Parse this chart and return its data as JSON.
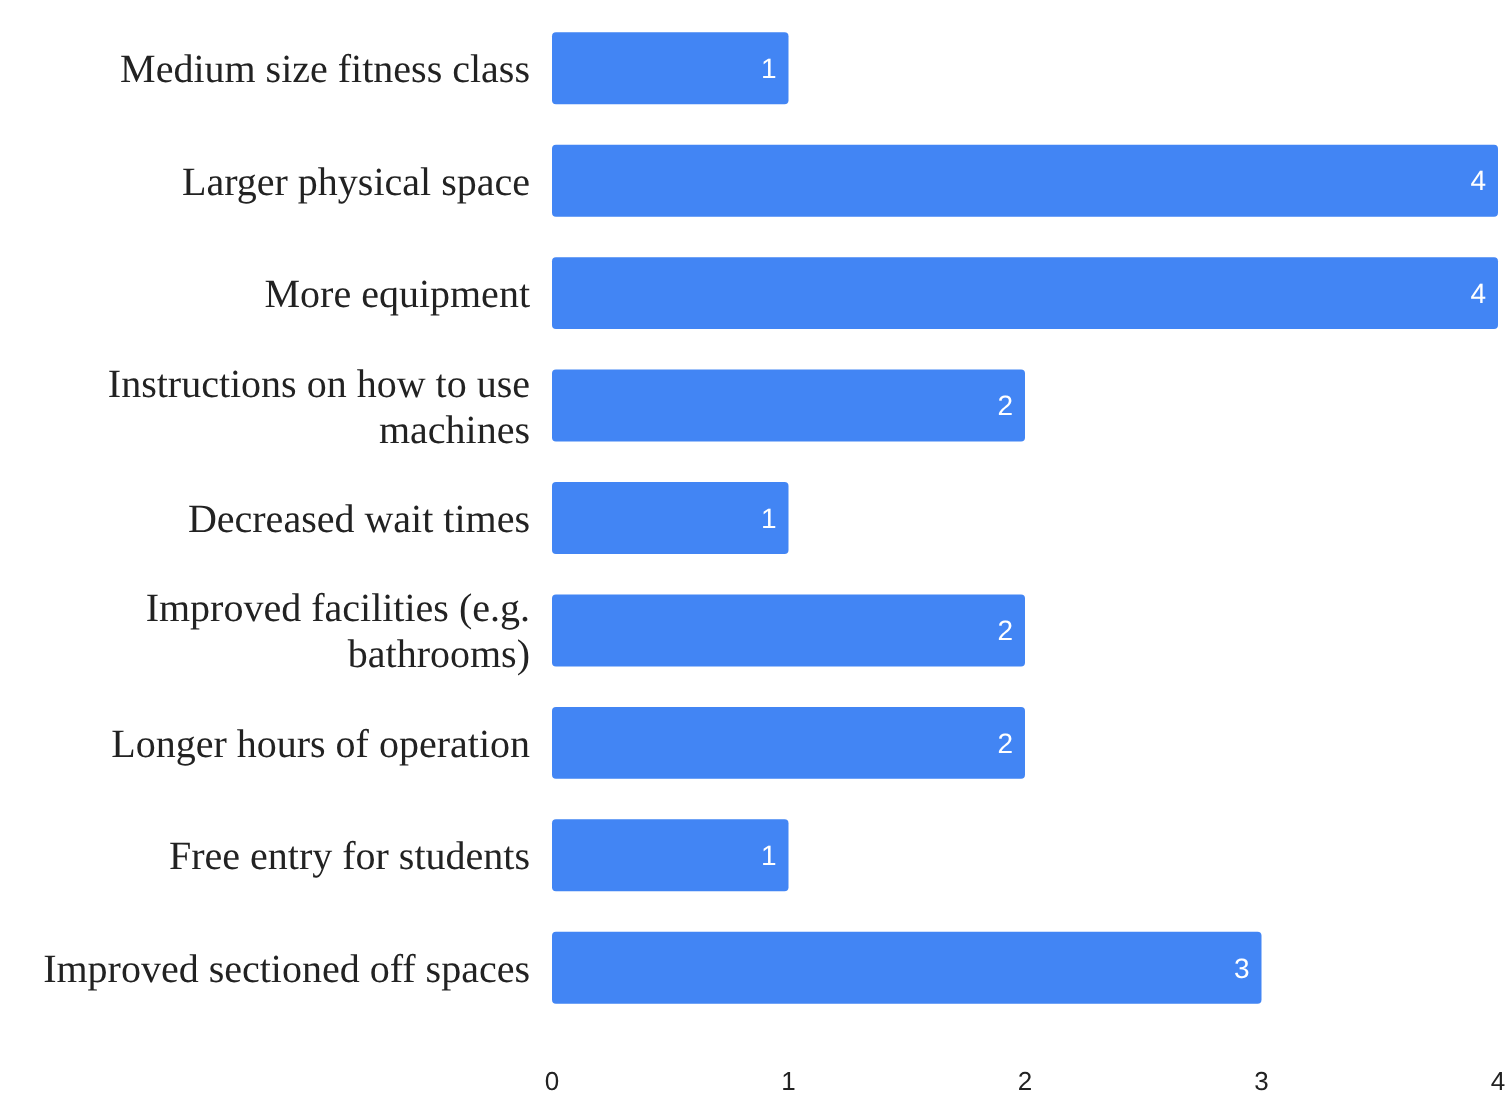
{
  "chart_data": {
    "type": "bar",
    "orientation": "horizontal",
    "categories": [
      "Medium size fitness class",
      "Larger physical space",
      "More equipment",
      "Instructions on how to use machines",
      "Decreased wait times",
      "Improved facilities (e.g. bathrooms)",
      "Longer hours of operation",
      "Free entry for students",
      "Improved sectioned off spaces"
    ],
    "values": [
      1,
      4,
      4,
      2,
      1,
      2,
      2,
      1,
      3
    ],
    "color": "#4285f4",
    "xlim": [
      0,
      4
    ],
    "xticks": [
      0,
      1,
      2,
      3,
      4
    ],
    "data_labels": true
  }
}
